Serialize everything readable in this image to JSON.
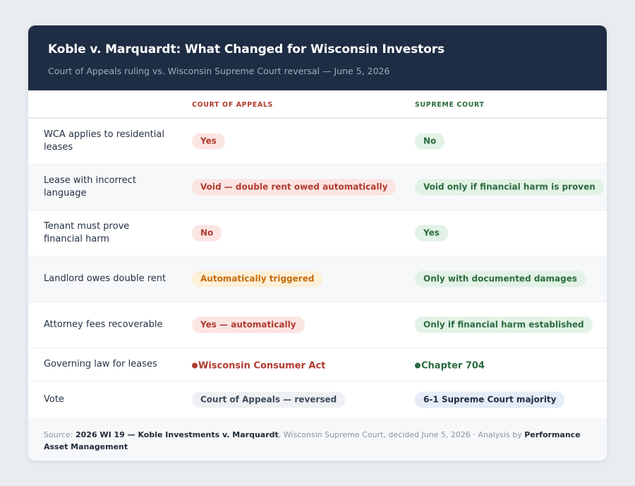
{
  "header": {
    "title": "Koble v. Marquardt: What Changed for Wisconsin Investors",
    "subtitle": "Court of Appeals ruling vs. Wisconsin Supreme Court reversal — June 5, 2026"
  },
  "columns": {
    "appeals": "COURT OF APPEALS",
    "supreme": "SUPREME COURT"
  },
  "rows": [
    {
      "label": "WCA applies to residential leases",
      "appeals": "Yes",
      "supreme": "No"
    },
    {
      "label": "Lease with incorrect language",
      "appeals": "Void — double rent owed automatically",
      "supreme": "Void only if financial harm is proven"
    },
    {
      "label": "Tenant must prove financial harm",
      "appeals": "No",
      "supreme": "Yes"
    },
    {
      "label": "Landlord owes double rent",
      "appeals": "Automatically triggered",
      "supreme": "Only with documented damages"
    },
    {
      "label": "Attorney fees recoverable",
      "appeals": "Yes — automatically",
      "supreme": "Only if financial harm established"
    },
    {
      "label": "Governing law for leases",
      "appeals": "Wisconsin Consumer Act",
      "supreme": "Chapter 704"
    },
    {
      "label": "Vote",
      "appeals": "Court of Appeals — reversed",
      "supreme": "6-1 Supreme Court majority"
    }
  ],
  "footer": {
    "source_prefix": "Source: ",
    "citation": "2026 WI 19 — Koble Investments v. Marquardt",
    "court_detail": ", Wisconsin Supreme Court, decided June 5, 2026",
    "separator": " · ",
    "analysis_prefix": "Analysis by ",
    "analyst": "Performance Asset Management"
  },
  "colors": {
    "header_bg": "#1e2d44",
    "appeals_accent": "#b03a2e",
    "supreme_accent": "#2c6b3f",
    "warning_accent": "#c66a0b"
  }
}
